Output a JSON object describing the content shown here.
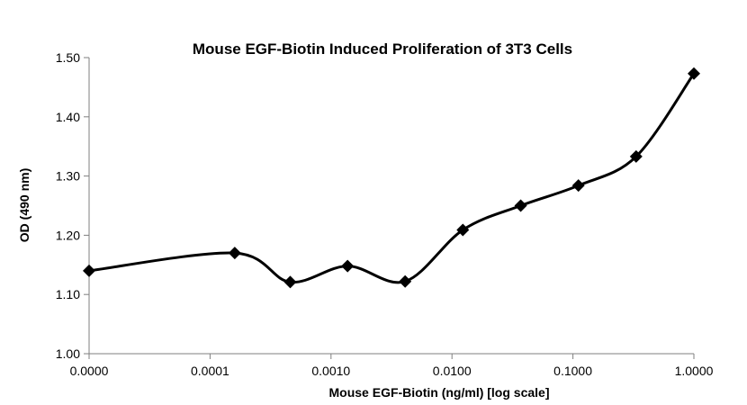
{
  "chart_data": {
    "type": "line",
    "title": "Mouse EGF-Biotin Induced Proliferation of 3T3 Cells",
    "xlabel": "Mouse EGF-Biotin (ng/ml) [log scale]",
    "ylabel": "OD (490 nm)",
    "x_scale": "log",
    "x_ticks": [
      "0.0000",
      "0.0001",
      "0.0010",
      "0.0100",
      "0.1000",
      "1.0000"
    ],
    "y_ticks": [
      "1.00",
      "1.10",
      "1.20",
      "1.30",
      "1.40",
      "1.50"
    ],
    "ylim": [
      1.0,
      1.5
    ],
    "grid": false,
    "legend": "none",
    "line_color": "#000000",
    "marker": "diamond",
    "series": [
      {
        "x": [
          1e-05,
          0.00016,
          0.00046,
          0.00137,
          0.0041,
          0.0123,
          0.037,
          0.111,
          0.333,
          1.0
        ],
        "values": [
          1.14,
          1.17,
          1.121,
          1.148,
          1.122,
          1.209,
          1.25,
          1.284,
          1.333,
          1.473
        ]
      }
    ]
  }
}
